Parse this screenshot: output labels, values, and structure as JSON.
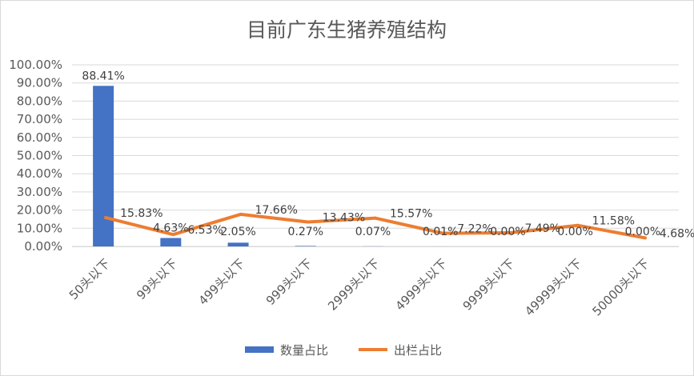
{
  "chart_data": {
    "type": "bar",
    "title": "目前广东生猪养殖结构",
    "categories": [
      "50头以下",
      "99头以下",
      "499头以下",
      "999头以下",
      "2999头以下",
      "4999头以下",
      "9999头以下",
      "49999头以下",
      "50000头以下"
    ],
    "ylim": [
      0,
      100
    ],
    "yticks": [
      "0.00%",
      "10.00%",
      "20.00%",
      "30.00%",
      "40.00%",
      "50.00%",
      "60.00%",
      "70.00%",
      "80.00%",
      "90.00%",
      "100.00%"
    ],
    "grid": true,
    "legend_position": "bottom",
    "series": [
      {
        "name": "数量占比",
        "type": "bar",
        "color": "#4472C4",
        "values": [
          88.41,
          4.63,
          2.05,
          0.27,
          0.07,
          0.01,
          0.0,
          0.0,
          0.0
        ],
        "labels": [
          "88.41%",
          "4.63%",
          "2.05%",
          "0.27%",
          "0.07%",
          "0.01%",
          "0.00%",
          "0.00%",
          "0.00%"
        ]
      },
      {
        "name": "出栏占比",
        "type": "line",
        "color": "#ED7D31",
        "values": [
          15.83,
          6.53,
          17.66,
          13.43,
          15.57,
          7.22,
          7.49,
          11.58,
          4.68
        ],
        "labels": [
          "15.83%",
          "6.53%",
          "17.66%",
          "13.43%",
          "15.57%",
          "7.22%",
          "7.49%",
          "11.58%",
          "4.68%"
        ]
      }
    ]
  }
}
